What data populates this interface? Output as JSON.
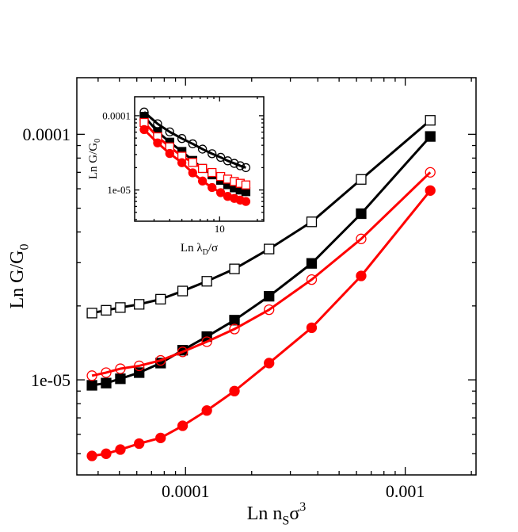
{
  "chart_data": [
    {
      "type": "line",
      "title": "",
      "xlabel": "Ln n_Sσ^3",
      "ylabel": "Ln G/G_0",
      "x_scale": "log",
      "y_scale": "log",
      "xlim": [
        3.2e-05,
        0.0021
      ],
      "ylim": [
        4.1e-06,
        0.00017
      ],
      "x_ticks": [
        {
          "value": 0.0001,
          "label": "0.0001"
        },
        {
          "value": 0.001,
          "label": "0.001"
        }
      ],
      "y_ticks": [
        {
          "value": 1e-05,
          "label": "1e-05"
        },
        {
          "value": 0.0001,
          "label": "0.0001"
        }
      ],
      "grid": false,
      "legend": "none",
      "series": [
        {
          "marker": "open-square",
          "color": "#000000",
          "x": [
            3.75e-05,
            4.35e-05,
            5.05e-05,
            6.15e-05,
            7.7e-05,
            9.7e-05,
            0.000125,
            0.000167,
            0.00024,
            0.000375,
            0.00063,
            0.0013
          ],
          "y": [
            1.87e-05,
            1.92e-05,
            1.97e-05,
            2.03e-05,
            2.13e-05,
            2.3e-05,
            2.52e-05,
            2.83e-05,
            3.41e-05,
            4.4e-05,
            6.55e-05,
            0.000114
          ]
        },
        {
          "marker": "filled-square",
          "color": "#000000",
          "x": [
            3.75e-05,
            4.35e-05,
            5.05e-05,
            6.15e-05,
            7.7e-05,
            9.7e-05,
            0.000125,
            0.000167,
            0.00024,
            0.000375,
            0.00063,
            0.0013
          ],
          "y": [
            9.5e-06,
            9.7e-06,
            1.01e-05,
            1.07e-05,
            1.17e-05,
            1.32e-05,
            1.5e-05,
            1.75e-05,
            2.19e-05,
            2.98e-05,
            4.75e-05,
            9.8e-05
          ]
        },
        {
          "marker": "open-circle",
          "color": "#ff0000",
          "x": [
            3.75e-05,
            4.35e-05,
            5.05e-05,
            6.15e-05,
            7.7e-05,
            9.7e-05,
            0.000125,
            0.000167,
            0.00024,
            0.000375,
            0.00063,
            0.0013
          ],
          "y": [
            1.04e-05,
            1.07e-05,
            1.11e-05,
            1.14e-05,
            1.2e-05,
            1.3e-05,
            1.43e-05,
            1.61e-05,
            1.93e-05,
            2.56e-05,
            3.75e-05,
            7e-05
          ]
        },
        {
          "marker": "filled-circle",
          "color": "#ff0000",
          "x": [
            3.75e-05,
            4.35e-05,
            5.05e-05,
            6.15e-05,
            7.7e-05,
            9.7e-05,
            0.000125,
            0.000167,
            0.00024,
            0.000375,
            0.00063,
            0.0013
          ],
          "y": [
            4.9e-06,
            5e-06,
            5.2e-06,
            5.5e-06,
            5.8e-06,
            6.5e-06,
            7.5e-06,
            9e-06,
            1.17e-05,
            1.63e-05,
            2.65e-05,
            5.9e-05
          ]
        }
      ]
    },
    {
      "type": "line",
      "title": "",
      "xlabel": "Ln λ_D/σ",
      "ylabel": "Ln G/G_0",
      "x_scale": "log",
      "y_scale": "log",
      "xlim": [
        2.1,
        22.5
      ],
      "ylim": [
        3.8e-06,
        0.00018
      ],
      "x_ticks": [
        {
          "value": 10,
          "label": "10"
        }
      ],
      "y_ticks": [
        {
          "value": 1e-05,
          "label": "1e-05"
        },
        {
          "value": 0.0001,
          "label": "0.0001"
        }
      ],
      "grid": false,
      "legend": "none",
      "series": [
        {
          "marker": "open-circle",
          "color": "#000000",
          "x": [
            2.5,
            3.2,
            4.0,
            5.0,
            6.1,
            7.3,
            8.7,
            10.2,
            11.6,
            13.1,
            14.6,
            16.2
          ],
          "y": [
            0.000112,
            7.78e-05,
            6.05e-05,
            4.93e-05,
            4.18e-05,
            3.55e-05,
            3.08e-05,
            2.75e-05,
            2.47e-05,
            2.28e-05,
            2.12e-05,
            2e-05
          ]
        },
        {
          "marker": "filled-square",
          "color": "#000000",
          "x": [
            2.5,
            3.2,
            4.0,
            5.0,
            6.1,
            7.3,
            8.7,
            10.2,
            11.6,
            13.1,
            14.6,
            16.2
          ],
          "y": [
            9.8e-05,
            6.1e-05,
            4.4e-05,
            3.3e-05,
            2.5e-05,
            1.95e-05,
            1.6e-05,
            1.35e-05,
            1.18e-05,
            1.07e-05,
            1e-05,
            9.5e-06
          ]
        },
        {
          "marker": "open-square",
          "color": "#ff0000",
          "x": [
            2.5,
            3.2,
            4.0,
            5.0,
            6.1,
            7.3,
            8.7,
            10.2,
            11.6,
            13.1,
            14.6,
            16.2
          ],
          "y": [
            8.1e-05,
            5.2e-05,
            3.8e-05,
            2.85e-05,
            2.35e-05,
            1.95e-05,
            1.72e-05,
            1.52e-05,
            1.4e-05,
            1.3e-05,
            1.23e-05,
            1.17e-05
          ]
        },
        {
          "marker": "filled-circle",
          "color": "#ff0000",
          "x": [
            2.5,
            3.2,
            4.0,
            5.0,
            6.1,
            7.3,
            8.7,
            10.2,
            11.6,
            13.1,
            14.6,
            16.2
          ],
          "y": [
            6.5e-05,
            4.3e-05,
            3.1e-05,
            2.33e-05,
            1.7e-05,
            1.32e-05,
            1.08e-05,
            9.2e-06,
            8.2e-06,
            7.7e-06,
            7.3e-06,
            7e-06
          ]
        }
      ]
    }
  ]
}
